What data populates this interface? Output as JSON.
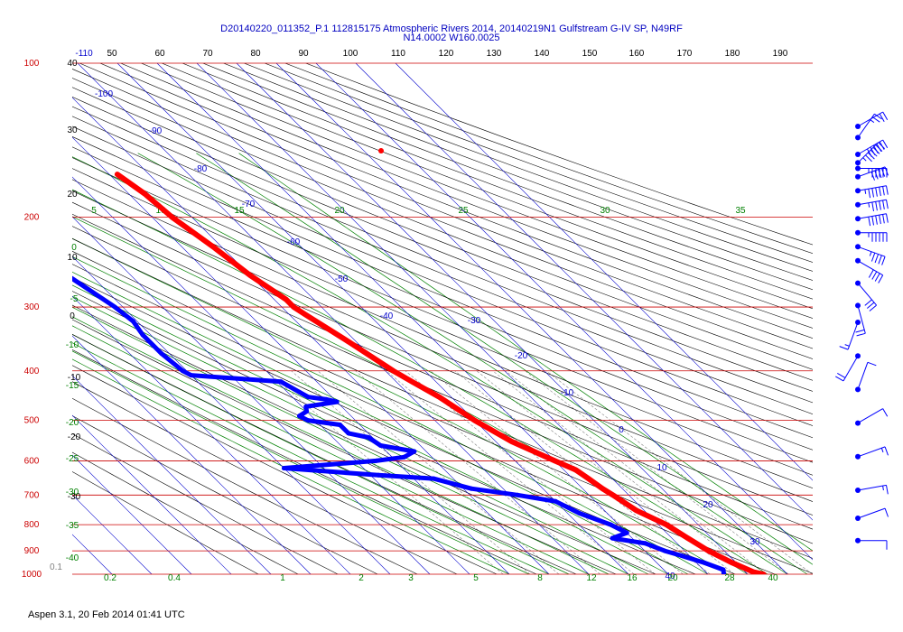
{
  "title_line1": "D20140220_011352_P.1 112815175 Atmospheric Rivers 2014, 20140219N1 Gulfstream G-IV SP, N49RF",
  "title_line2": "N14.0002 W160.0025",
  "footer": "Aspen 3.1, 20 Feb 2014  01:41 UTC",
  "colors": {
    "isobar": "#cc0000",
    "isotherm": "#0000cc",
    "dry_adiabat": "#000000",
    "moist_adiabat": "#008000",
    "mixing_ratio": "#808080",
    "temperature": "#ff0000",
    "dewpoint": "#0000ff"
  },
  "chart_data": {
    "type": "scatter",
    "title": "D20140220_011352_P.1 112815175 Atmospheric Rivers 2014, 20140219N1 Gulfstream G-IV SP, N49RF",
    "pressure_levels": [
      "100",
      "200",
      "300",
      "400",
      "500",
      "600",
      "700",
      "800",
      "900",
      "1000"
    ],
    "top_tick_labels": [
      "-110",
      "50",
      "60",
      "70",
      "80",
      "90",
      "100",
      "110",
      "120",
      "130",
      "140",
      "150",
      "160",
      "170",
      "180",
      "190"
    ],
    "isotherm_labels": [
      "-100",
      "-90",
      "-80",
      "-70",
      "-60",
      "-50",
      "-40",
      "-30",
      "-20",
      "-10",
      "0",
      "10",
      "20",
      "30",
      "40"
    ],
    "dry_adiabat_labels": [
      "40",
      "30",
      "20",
      "10",
      "0",
      "-10",
      "-20",
      "-30"
    ],
    "moist_adiabat_labels": [
      "5",
      "10",
      "15",
      "20",
      "25",
      "30",
      "35"
    ],
    "moist_left_labels": [
      "0",
      "-5",
      "-10",
      "-15",
      "-20",
      "-25",
      "-30",
      "-35",
      "-40"
    ],
    "mixing_ratio_labels": [
      "0.1",
      "0.2",
      "0.4",
      "1",
      "2",
      "3",
      "5",
      "8",
      "12",
      "16",
      "20",
      "28",
      "40"
    ],
    "temperature_profile": [
      [
        165,
        -38
      ],
      [
        180,
        -36
      ],
      [
        200,
        -35
      ],
      [
        230,
        -32
      ],
      [
        260,
        -30
      ],
      [
        290,
        -27
      ],
      [
        300,
        -27
      ],
      [
        310,
        -26
      ],
      [
        350,
        -22
      ],
      [
        400,
        -18
      ],
      [
        420,
        -16
      ],
      [
        450,
        -13
      ],
      [
        500,
        -10
      ],
      [
        550,
        -6
      ],
      [
        600,
        0
      ],
      [
        625,
        3
      ],
      [
        650,
        4
      ],
      [
        680,
        5
      ],
      [
        700,
        6
      ],
      [
        750,
        8
      ],
      [
        800,
        12
      ],
      [
        850,
        14
      ],
      [
        900,
        16
      ],
      [
        950,
        19
      ],
      [
        990,
        22
      ],
      [
        1000,
        24
      ]
    ],
    "dewpoint_profile": [
      [
        195,
        -79
      ],
      [
        220,
        -79
      ],
      [
        260,
        -76
      ],
      [
        300,
        -72
      ],
      [
        320,
        -71
      ],
      [
        340,
        -72
      ],
      [
        370,
        -72
      ],
      [
        400,
        -71
      ],
      [
        408,
        -70
      ],
      [
        420,
        -49
      ],
      [
        440,
        -47
      ],
      [
        450,
        -46
      ],
      [
        455,
        -42
      ],
      [
        460,
        -40
      ],
      [
        470,
        -49
      ],
      [
        480,
        -50
      ],
      [
        490,
        -53
      ],
      [
        500,
        -52
      ],
      [
        510,
        -45
      ],
      [
        530,
        -45
      ],
      [
        540,
        -41
      ],
      [
        560,
        -40
      ],
      [
        575,
        -33
      ],
      [
        590,
        -37
      ],
      [
        600,
        -45
      ],
      [
        620,
        -70
      ],
      [
        640,
        -48
      ],
      [
        650,
        -35
      ],
      [
        680,
        -28
      ],
      [
        700,
        -18
      ],
      [
        720,
        -10
      ],
      [
        760,
        -7
      ],
      [
        800,
        -2
      ],
      [
        830,
        0
      ],
      [
        850,
        -5
      ],
      [
        870,
        2
      ],
      [
        900,
        5
      ],
      [
        920,
        8
      ],
      [
        950,
        12
      ],
      [
        980,
        15
      ],
      [
        1000,
        14
      ]
    ],
    "wind_barbs": [
      [
        110,
        240,
        20
      ],
      [
        130,
        215,
        25
      ],
      [
        160,
        240,
        60
      ],
      [
        175,
        225,
        70
      ],
      [
        185,
        270,
        55
      ],
      [
        200,
        250,
        50
      ],
      [
        225,
        260,
        65
      ],
      [
        250,
        260,
        55
      ],
      [
        275,
        260,
        60
      ],
      [
        300,
        270,
        55
      ],
      [
        325,
        290,
        45
      ],
      [
        350,
        300,
        40
      ],
      [
        390,
        320,
        30
      ],
      [
        430,
        345,
        20
      ],
      [
        460,
        20,
        15
      ],
      [
        520,
        30,
        20
      ],
      [
        580,
        200,
        10
      ],
      [
        640,
        240,
        10
      ],
      [
        700,
        250,
        15
      ],
      [
        760,
        260,
        15
      ],
      [
        810,
        250,
        10
      ],
      [
        850,
        270,
        10
      ]
    ]
  }
}
